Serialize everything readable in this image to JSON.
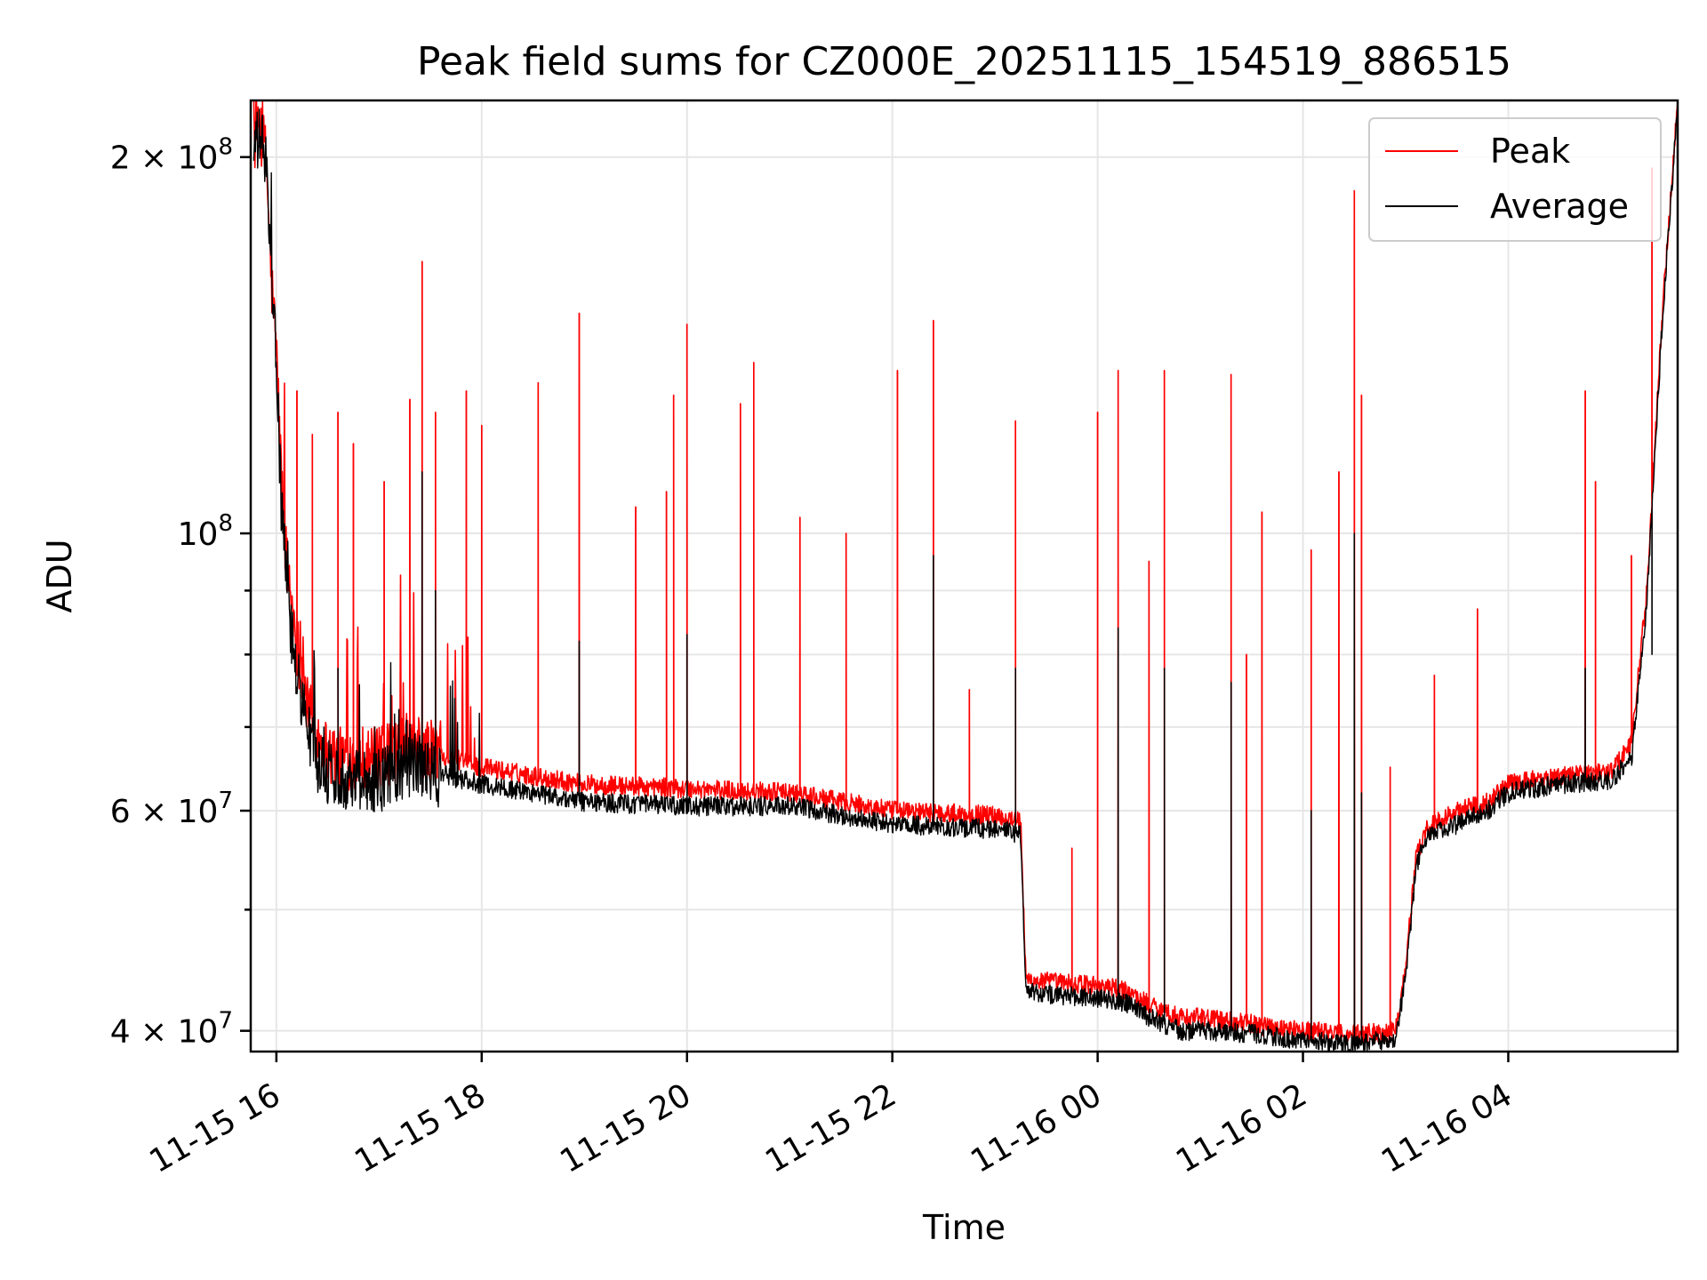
{
  "chart_data": {
    "type": "line",
    "title": "Peak field sums for CZ000E_20251115_154519_886515",
    "xlabel": "Time",
    "ylabel": "ADU",
    "yscale": "log",
    "ylim": [
      38500000,
      222000000
    ],
    "xlim_hours": [
      -0.25,
      13.65
    ],
    "x_units": "hours since 2025-11-15 16:00",
    "grid": true,
    "legend_position": "upper right",
    "x_ticks": [
      {
        "value": 0,
        "label": "11-15 16"
      },
      {
        "value": 2,
        "label": "11-15 18"
      },
      {
        "value": 4,
        "label": "11-15 20"
      },
      {
        "value": 6,
        "label": "11-15 22"
      },
      {
        "value": 8,
        "label": "11-16 00"
      },
      {
        "value": 10,
        "label": "11-16 02"
      },
      {
        "value": 12,
        "label": "11-16 04"
      }
    ],
    "y_major_ticks": [
      {
        "value": 40000000,
        "mantissa": "4",
        "exp": "7"
      },
      {
        "value": 60000000,
        "mantissa": "6",
        "exp": "7"
      },
      {
        "value": 100000000,
        "mantissa": "",
        "exp": "8"
      },
      {
        "value": 200000000,
        "mantissa": "2",
        "exp": "8"
      }
    ],
    "y_minor_ticks": [
      50000000,
      70000000,
      80000000,
      90000000
    ],
    "times_label": "2 × 10^8",
    "series": [
      {
        "name": "Peak",
        "color": "#ff0000",
        "baseline": {
          "x": [
            -0.22,
            -0.15,
            -0.1,
            -0.05,
            0.0,
            0.05,
            0.1,
            0.2,
            0.3,
            0.4,
            0.5,
            0.6,
            0.8,
            1.0,
            1.2,
            1.3,
            1.5,
            2.0,
            3.0,
            4.0,
            5.0,
            5.5,
            6.0,
            7.0,
            7.25,
            7.3,
            7.5,
            8.0,
            8.3,
            8.5,
            8.8,
            9.0,
            9.5,
            10.0,
            10.5,
            10.9,
            11.0,
            11.1,
            11.2,
            11.5,
            11.8,
            12.0,
            12.5,
            13.0,
            13.2,
            13.35,
            13.5,
            13.65
          ],
          "y": [
            205000000,
            210000000,
            200000000,
            160000000,
            140000000,
            110000000,
            95000000,
            82000000,
            73000000,
            69000000,
            67000000,
            66000000,
            66500000,
            66000000,
            67500000,
            68000000,
            67000000,
            65000000,
            63000000,
            62500000,
            62000000,
            61000000,
            60000000,
            59500000,
            59000000,
            44000000,
            43800000,
            43500000,
            43000000,
            42000000,
            41000000,
            41000000,
            40500000,
            40000000,
            39800000,
            40000000,
            45000000,
            55000000,
            58000000,
            60000000,
            61000000,
            63000000,
            64000000,
            64500000,
            68000000,
            90000000,
            150000000,
            222000000
          ]
        },
        "spikes": [
          {
            "x": 0.2,
            "y": 130000000
          },
          {
            "x": 0.35,
            "y": 120000000
          },
          {
            "x": 0.6,
            "y": 125000000
          },
          {
            "x": 0.75,
            "y": 118000000
          },
          {
            "x": 1.05,
            "y": 110000000
          },
          {
            "x": 1.3,
            "y": 128000000
          },
          {
            "x": 1.42,
            "y": 165000000
          },
          {
            "x": 1.55,
            "y": 125000000
          },
          {
            "x": 1.85,
            "y": 130000000
          },
          {
            "x": 2.0,
            "y": 122000000
          },
          {
            "x": 2.55,
            "y": 132000000
          },
          {
            "x": 2.95,
            "y": 150000000
          },
          {
            "x": 3.5,
            "y": 105000000
          },
          {
            "x": 3.8,
            "y": 108000000
          },
          {
            "x": 3.87,
            "y": 129000000
          },
          {
            "x": 4.0,
            "y": 147000000
          },
          {
            "x": 4.52,
            "y": 127000000
          },
          {
            "x": 4.65,
            "y": 137000000
          },
          {
            "x": 5.1,
            "y": 103000000
          },
          {
            "x": 5.55,
            "y": 100000000
          },
          {
            "x": 6.05,
            "y": 135000000
          },
          {
            "x": 6.4,
            "y": 148000000
          },
          {
            "x": 6.75,
            "y": 75000000
          },
          {
            "x": 7.2,
            "y": 123000000
          },
          {
            "x": 7.75,
            "y": 56000000
          },
          {
            "x": 8.0,
            "y": 125000000
          },
          {
            "x": 8.2,
            "y": 135000000
          },
          {
            "x": 8.5,
            "y": 95000000
          },
          {
            "x": 8.65,
            "y": 135000000
          },
          {
            "x": 9.3,
            "y": 134000000
          },
          {
            "x": 9.45,
            "y": 80000000
          },
          {
            "x": 9.6,
            "y": 104000000
          },
          {
            "x": 10.08,
            "y": 97000000
          },
          {
            "x": 10.35,
            "y": 112000000
          },
          {
            "x": 10.5,
            "y": 188000000
          },
          {
            "x": 10.57,
            "y": 129000000
          },
          {
            "x": 10.85,
            "y": 65000000
          },
          {
            "x": 11.28,
            "y": 77000000
          },
          {
            "x": 11.7,
            "y": 87000000
          },
          {
            "x": 12.75,
            "y": 130000000
          },
          {
            "x": 12.85,
            "y": 110000000
          },
          {
            "x": 13.2,
            "y": 96000000
          },
          {
            "x": 13.4,
            "y": 196000000
          }
        ]
      },
      {
        "name": "Average",
        "color": "#000000",
        "baseline": {
          "x": [
            -0.22,
            -0.15,
            -0.1,
            -0.05,
            0.0,
            0.05,
            0.1,
            0.2,
            0.3,
            0.4,
            0.5,
            0.6,
            0.8,
            1.0,
            1.2,
            1.3,
            1.5,
            2.0,
            3.0,
            4.0,
            5.0,
            5.5,
            6.0,
            7.0,
            7.25,
            7.3,
            7.5,
            8.0,
            8.3,
            8.5,
            8.8,
            9.0,
            9.5,
            10.0,
            10.5,
            10.9,
            11.0,
            11.1,
            11.2,
            11.5,
            11.8,
            12.0,
            12.5,
            13.0,
            13.2,
            13.35,
            13.5,
            13.65
          ],
          "y": [
            203000000,
            208000000,
            198000000,
            157000000,
            137000000,
            105000000,
            90000000,
            77000000,
            70000000,
            66000000,
            64500000,
            64000000,
            64000000,
            63500000,
            65000000,
            65500000,
            64500000,
            63000000,
            61000000,
            60500000,
            60500000,
            59500000,
            58500000,
            58000000,
            57500000,
            43000000,
            42800000,
            42500000,
            42000000,
            41000000,
            40000000,
            40000000,
            39800000,
            39300000,
            39000000,
            39400000,
            44000000,
            54000000,
            57000000,
            58500000,
            60000000,
            62000000,
            63000000,
            63500000,
            66000000,
            88000000,
            148000000,
            220000000
          ]
        },
        "spikes": [
          {
            "x": 0.6,
            "y": 78000000
          },
          {
            "x": 1.42,
            "y": 112000000
          },
          {
            "x": 1.55,
            "y": 90000000
          },
          {
            "x": 2.95,
            "y": 82000000
          },
          {
            "x": 4.0,
            "y": 83000000
          },
          {
            "x": 6.4,
            "y": 96000000
          },
          {
            "x": 7.2,
            "y": 78000000
          },
          {
            "x": 8.2,
            "y": 84000000
          },
          {
            "x": 8.65,
            "y": 78000000
          },
          {
            "x": 9.3,
            "y": 76000000
          },
          {
            "x": 10.08,
            "y": 60000000
          },
          {
            "x": 10.5,
            "y": 100000000
          },
          {
            "x": 10.57,
            "y": 62000000
          },
          {
            "x": 12.75,
            "y": 78000000
          },
          {
            "x": 13.4,
            "y": 80000000
          }
        ]
      }
    ]
  }
}
